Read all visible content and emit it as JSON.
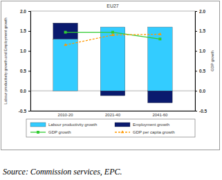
{
  "chart_data": {
    "type": "bar",
    "stacked": true,
    "title": "EU27",
    "y_label": "Labour productivity growth and Employment growth",
    "y2_label": "GDP growth",
    "source": "Source: Commission services, EPC.",
    "categories": [
      "2010-20",
      "2021-40",
      "2041-60"
    ],
    "ylim": [
      -0.5,
      2.0
    ],
    "yticks": [
      -0.5,
      {
        "value": 0,
        "label": "0.0"
      },
      0.5,
      {
        "value": 1,
        "label": "1.0"
      },
      1.5,
      {
        "value": 2,
        "label": "2.0"
      }
    ],
    "y2lim": [
      -0.5,
      2.0
    ],
    "y2ticks": [
      -0.5,
      {
        "value": 0,
        "label": "0.0"
      },
      0.5,
      {
        "value": 1,
        "label": "1.0"
      },
      1.5,
      {
        "value": 2,
        "label": "2.0"
      }
    ],
    "legend": "bottom",
    "series": [
      {
        "name": "Labour productivity growth",
        "type": "bar",
        "color": "#33ccff",
        "values": [
          1.3,
          1.6,
          1.6
        ]
      },
      {
        "name": "Employment growth",
        "type": "bar",
        "color": "#0a1a6e",
        "values": [
          0.4,
          -0.12,
          -0.3
        ]
      },
      {
        "name": "GDP growth",
        "type": "line",
        "axis": "y2",
        "color": "#33cc33",
        "marker": "square",
        "line_style": "solid",
        "values": [
          1.47,
          1.47,
          1.3
        ]
      },
      {
        "name": "GDP per capita growth",
        "type": "line",
        "axis": "y2",
        "color": "#ff9900",
        "marker": "triangle",
        "line_style": "dashed",
        "values": [
          1.15,
          1.4,
          1.42
        ]
      }
    ]
  }
}
